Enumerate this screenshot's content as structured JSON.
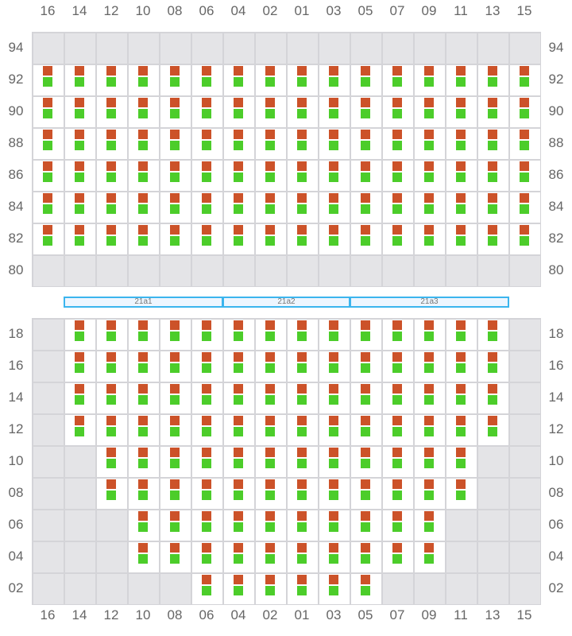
{
  "columns": [
    "16",
    "14",
    "12",
    "10",
    "08",
    "06",
    "04",
    "02",
    "01",
    "03",
    "05",
    "07",
    "09",
    "11",
    "13",
    "15"
  ],
  "top_block": {
    "rows": [
      {
        "label": "94",
        "active": []
      },
      {
        "label": "92",
        "active": [
          "16",
          "15"
        ]
      },
      {
        "label": "90",
        "active": [
          "16",
          "15"
        ]
      },
      {
        "label": "88",
        "active": [
          "16",
          "15"
        ]
      },
      {
        "label": "86",
        "active": [
          "16",
          "15"
        ]
      },
      {
        "label": "84",
        "active": [
          "16",
          "15"
        ]
      },
      {
        "label": "82",
        "active": [
          "16",
          "15"
        ]
      },
      {
        "label": "80",
        "active": []
      }
    ]
  },
  "sections": [
    {
      "label": "21a1",
      "from": "14",
      "to": "06"
    },
    {
      "label": "21a2",
      "from": "04",
      "to": "03"
    },
    {
      "label": "21a3",
      "from": "05",
      "to": "13"
    }
  ],
  "bottom_block": {
    "rows": [
      {
        "label": "18",
        "active": [
          "14",
          "13"
        ]
      },
      {
        "label": "16",
        "active": [
          "14",
          "13"
        ]
      },
      {
        "label": "14",
        "active": [
          "14",
          "13"
        ]
      },
      {
        "label": "12",
        "active": [
          "14",
          "13"
        ]
      },
      {
        "label": "10",
        "active": [
          "12",
          "11"
        ]
      },
      {
        "label": "08",
        "active": [
          "12",
          "11"
        ]
      },
      {
        "label": "06",
        "active": [
          "10",
          "09"
        ]
      },
      {
        "label": "04",
        "active": [
          "10",
          "09"
        ]
      },
      {
        "label": "02",
        "active": [
          "06",
          "05"
        ]
      }
    ]
  },
  "colors": {
    "status_top": "#cc5229",
    "status_bottom": "#4ccd2a",
    "section_border": "#3bb5ee",
    "unavailable": "#e4e4e7"
  }
}
